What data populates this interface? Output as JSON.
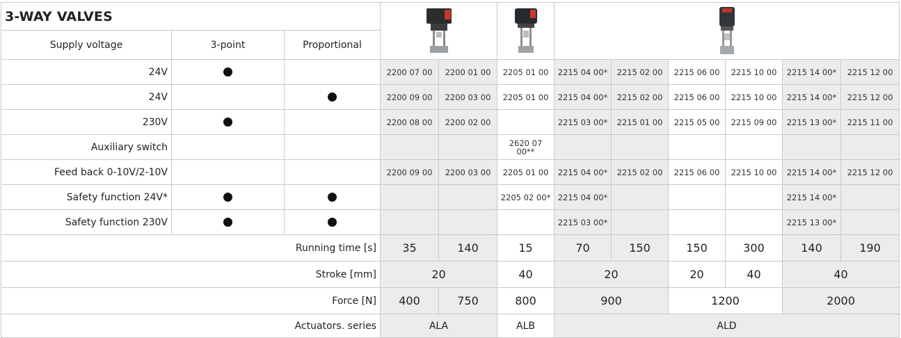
{
  "title": "3-WAY VALVES",
  "headers": {
    "supply": "Supply voltage",
    "three_point": "3-point",
    "proportional": "Proportional"
  },
  "rows": [
    {
      "label": "24V",
      "three_point": true,
      "proportional": false,
      "codes": [
        "2200 07 00",
        "2200 01 00",
        "2205 01 00",
        "2215 04 00*",
        "2215 02 00",
        "2215 06 00",
        "2215 10 00",
        "2215 14 00*",
        "2215 12 00"
      ]
    },
    {
      "label": "24V",
      "three_point": false,
      "proportional": true,
      "codes": [
        "2200 09 00",
        "2200 03 00",
        "2205 01 00",
        "2215 04 00*",
        "2215 02 00",
        "2215 06 00",
        "2215 10 00",
        "2215 14 00*",
        "2215 12 00"
      ]
    },
    {
      "label": "230V",
      "three_point": true,
      "proportional": false,
      "codes": [
        "2200 08 00",
        "2200 02 00",
        "",
        "2215 03 00*",
        "2215 01 00",
        "2215 05 00",
        "2215 09 00",
        "2215 13 00*",
        "2215 11 00"
      ]
    },
    {
      "label": "Auxiliary switch",
      "three_point": false,
      "proportional": false,
      "codes": [
        "",
        "",
        "2620 07 00**",
        "",
        "",
        "",
        "",
        "",
        ""
      ]
    },
    {
      "label": "Feed back 0-10V/2-10V",
      "three_point": false,
      "proportional": false,
      "codes": [
        "2200 09 00",
        "2200 03 00",
        "2205 01 00",
        "2215 04 00*",
        "2215 02 00",
        "2215 06 00",
        "2215 10 00",
        "2215 14 00*",
        "2215 12 00"
      ]
    },
    {
      "label": "Safety function 24V*",
      "three_point": true,
      "proportional": true,
      "codes": [
        "",
        "",
        "2205 02 00*",
        "2215 04 00*",
        "",
        "",
        "",
        "2215 14 00*",
        ""
      ]
    },
    {
      "label": "Safety function 230V",
      "three_point": true,
      "proportional": true,
      "codes": [
        "",
        "",
        "",
        "2215 03 00*",
        "",
        "",
        "",
        "2215 13 00*",
        ""
      ]
    }
  ],
  "specs": {
    "running_time": {
      "label": "Running time [s]",
      "values": [
        "35",
        "140",
        "15",
        "70",
        "150",
        "150",
        "300",
        "140",
        "190"
      ]
    },
    "stroke": {
      "label": "Stroke [mm]",
      "values": [
        "20",
        "40",
        "20",
        "20",
        "40",
        "40"
      ]
    },
    "force": {
      "label": "Force [N]",
      "values": [
        "400",
        "750",
        "800",
        "900",
        "1200",
        "2000"
      ]
    },
    "series": {
      "label": "Actuators. series",
      "values": [
        "ALA",
        "ALB",
        "ALD"
      ]
    }
  },
  "images": [
    "actuator-ala-photo",
    "actuator-alb-photo",
    "actuator-ald-photo"
  ]
}
